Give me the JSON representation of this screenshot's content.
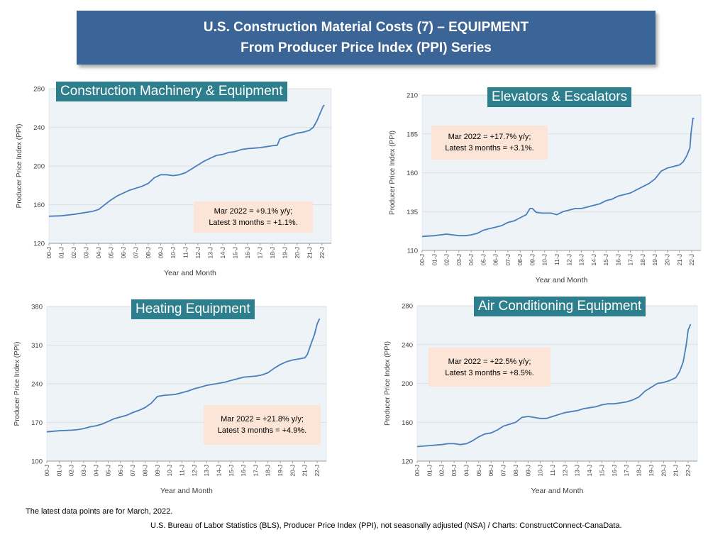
{
  "header": {
    "line1": "U.S. Construction Material Costs (7) – EQUIPMENT",
    "line2": "From Producer Price Index (PPI) Series"
  },
  "footer": {
    "note": "The latest data points are for March, 2022.",
    "source": "U.S. Bureau of Labor Statistics (BLS), Producer Price Index (PPI), not seasonally adjusted (NSA) / Charts: ConstructConnect-CanaData."
  },
  "colors": {
    "line": "#4a7ebb",
    "plot_bg": "#eef3f8",
    "title_bg": "#2e7f8e",
    "note_bg": "#fce4d6",
    "banner": "#3c6597"
  },
  "chart_data": [
    {
      "type": "line",
      "title": "Construction Machinery & Equipment",
      "xlabel": "Year and Month",
      "ylabel": "Producer Price Index (PPI)",
      "ylim": [
        120,
        280
      ],
      "yticks": [
        120,
        160,
        200,
        240,
        280
      ],
      "xticks": [
        "00-J",
        "01-J",
        "02-J",
        "03-J",
        "04-J",
        "05-J",
        "06-J",
        "07-J",
        "08-J",
        "09-J",
        "10-J",
        "11-J",
        "12-J",
        "13-J",
        "14-J",
        "15-J",
        "16-J",
        "17-J",
        "18-J",
        "19-J",
        "20-J",
        "21-J",
        "22-J"
      ],
      "note_line1": "Mar 2022 = +9.1% y/y;",
      "note_line2": "Latest 3 months = +1.1%.",
      "series": [
        {
          "points": [
            [
              2000.0,
              148
            ],
            [
              2001.0,
              148.5
            ],
            [
              2002.0,
              150
            ],
            [
              2002.5,
              151
            ],
            [
              2003.0,
              152
            ],
            [
              2003.5,
              153
            ],
            [
              2004.0,
              155
            ],
            [
              2004.5,
              160
            ],
            [
              2005.0,
              165
            ],
            [
              2005.5,
              169
            ],
            [
              2006.0,
              172
            ],
            [
              2006.5,
              175
            ],
            [
              2007.0,
              177
            ],
            [
              2007.5,
              179
            ],
            [
              2008.0,
              182
            ],
            [
              2008.5,
              188
            ],
            [
              2009.0,
              191
            ],
            [
              2009.5,
              191
            ],
            [
              2010.0,
              190
            ],
            [
              2010.5,
              191
            ],
            [
              2011.0,
              193
            ],
            [
              2011.5,
              197
            ],
            [
              2012.0,
              201
            ],
            [
              2012.5,
              205
            ],
            [
              2013.0,
              208
            ],
            [
              2013.5,
              211
            ],
            [
              2014.0,
              212
            ],
            [
              2014.5,
              214
            ],
            [
              2015.0,
              215
            ],
            [
              2015.5,
              217
            ],
            [
              2016.0,
              218
            ],
            [
              2016.5,
              218.5
            ],
            [
              2017.0,
              219
            ],
            [
              2017.5,
              220
            ],
            [
              2018.0,
              221
            ],
            [
              2018.4,
              221.5
            ],
            [
              2018.6,
              228
            ],
            [
              2019.0,
              230
            ],
            [
              2019.5,
              232
            ],
            [
              2020.0,
              234
            ],
            [
              2020.5,
              235
            ],
            [
              2021.0,
              237
            ],
            [
              2021.3,
              240
            ],
            [
              2021.6,
              247
            ],
            [
              2021.9,
              256
            ],
            [
              2022.1,
              262
            ],
            [
              2022.2,
              263
            ]
          ]
        }
      ]
    },
    {
      "type": "line",
      "title": "Elevators & Escalators",
      "xlabel": "Year and Month",
      "ylabel": "Producer Price Index (PPI)",
      "ylim": [
        110,
        210
      ],
      "yticks": [
        110,
        135,
        160,
        185,
        210
      ],
      "xticks": [
        "00-J",
        "01-J",
        "02-J",
        "03-J",
        "04-J",
        "05-J",
        "06-J",
        "07-J",
        "08-J",
        "09-J",
        "10-J",
        "11-J",
        "12-J",
        "13-J",
        "14-J",
        "15-J",
        "16-J",
        "17-J",
        "18-J",
        "19-J",
        "20-J",
        "21-J",
        "22-J"
      ],
      "note_line1": "Mar 2022 = +17.7% y/y;",
      "note_line2": "Latest 3 months = +3.1%.",
      "series": [
        {
          "points": [
            [
              2000.0,
              119
            ],
            [
              2001.0,
              119.5
            ],
            [
              2002.0,
              120.5
            ],
            [
              2002.5,
              120
            ],
            [
              2003.0,
              119.5
            ],
            [
              2003.5,
              119.5
            ],
            [
              2004.0,
              120
            ],
            [
              2004.5,
              121
            ],
            [
              2005.0,
              123
            ],
            [
              2005.5,
              124
            ],
            [
              2006.0,
              125
            ],
            [
              2006.5,
              126
            ],
            [
              2007.0,
              128
            ],
            [
              2007.5,
              129
            ],
            [
              2008.0,
              131
            ],
            [
              2008.5,
              133
            ],
            [
              2008.8,
              137
            ],
            [
              2009.0,
              137
            ],
            [
              2009.3,
              134.5
            ],
            [
              2009.8,
              134
            ],
            [
              2010.0,
              134
            ],
            [
              2010.5,
              134
            ],
            [
              2011.0,
              133
            ],
            [
              2011.5,
              135
            ],
            [
              2012.0,
              136
            ],
            [
              2012.5,
              137
            ],
            [
              2013.0,
              137
            ],
            [
              2013.5,
              138
            ],
            [
              2014.0,
              139
            ],
            [
              2014.5,
              140
            ],
            [
              2015.0,
              142
            ],
            [
              2015.5,
              143
            ],
            [
              2016.0,
              145
            ],
            [
              2016.5,
              146
            ],
            [
              2017.0,
              147
            ],
            [
              2017.5,
              149
            ],
            [
              2018.0,
              151
            ],
            [
              2018.5,
              153
            ],
            [
              2019.0,
              156
            ],
            [
              2019.5,
              161
            ],
            [
              2020.0,
              163
            ],
            [
              2020.5,
              164
            ],
            [
              2021.0,
              165
            ],
            [
              2021.3,
              167
            ],
            [
              2021.6,
              171
            ],
            [
              2021.85,
              176
            ],
            [
              2021.95,
              186
            ],
            [
              2022.1,
              195
            ],
            [
              2022.2,
              195
            ]
          ]
        }
      ]
    },
    {
      "type": "line",
      "title": "Heating Equipment",
      "xlabel": "Year and Month",
      "ylabel": "Producer Price Index (PPI)",
      "ylim": [
        100,
        380
      ],
      "yticks": [
        100,
        170,
        240,
        310,
        380
      ],
      "xticks": [
        "00-J",
        "01-J",
        "02-J",
        "03-J",
        "04-J",
        "05-J",
        "06-J",
        "07-J",
        "08-J",
        "09-J",
        "10-J",
        "11-J",
        "12-J",
        "13-J",
        "14-J",
        "15-J",
        "16-J",
        "17-J",
        "18-J",
        "19-J",
        "20-J",
        "21-J",
        "22-J"
      ],
      "note_line1": "Mar 2022 = +21.8% y/y;",
      "note_line2": "Latest 3 months = +4.9%.",
      "series": [
        {
          "points": [
            [
              2000.0,
              153
            ],
            [
              2001.0,
              155
            ],
            [
              2002.0,
              156
            ],
            [
              2002.5,
              157
            ],
            [
              2003.0,
              159
            ],
            [
              2003.5,
              162
            ],
            [
              2004.0,
              164
            ],
            [
              2004.5,
              167
            ],
            [
              2005.0,
              172
            ],
            [
              2005.5,
              177
            ],
            [
              2006.0,
              180
            ],
            [
              2006.5,
              183
            ],
            [
              2007.0,
              188
            ],
            [
              2007.5,
              192
            ],
            [
              2008.0,
              197
            ],
            [
              2008.5,
              205
            ],
            [
              2009.0,
              217
            ],
            [
              2009.5,
              219
            ],
            [
              2010.0,
              220
            ],
            [
              2010.5,
              221
            ],
            [
              2011.0,
              224
            ],
            [
              2011.5,
              227
            ],
            [
              2012.0,
              231
            ],
            [
              2012.5,
              234
            ],
            [
              2013.0,
              237
            ],
            [
              2013.5,
              239
            ],
            [
              2014.0,
              241
            ],
            [
              2014.5,
              243
            ],
            [
              2015.0,
              246
            ],
            [
              2015.5,
              249
            ],
            [
              2016.0,
              252
            ],
            [
              2016.5,
              253
            ],
            [
              2017.0,
              254
            ],
            [
              2017.5,
              256
            ],
            [
              2018.0,
              260
            ],
            [
              2018.5,
              268
            ],
            [
              2019.0,
              275
            ],
            [
              2019.5,
              280
            ],
            [
              2020.0,
              283
            ],
            [
              2020.5,
              285
            ],
            [
              2021.0,
              287
            ],
            [
              2021.2,
              293
            ],
            [
              2021.5,
              312
            ],
            [
              2021.8,
              330
            ],
            [
              2022.0,
              348
            ],
            [
              2022.2,
              358
            ]
          ]
        }
      ]
    },
    {
      "type": "line",
      "title": "Air Conditioning Equipment",
      "xlabel": "Year and Month",
      "ylabel": "Producer Price Index (PPI)",
      "ylim": [
        120,
        280
      ],
      "yticks": [
        120,
        160,
        200,
        240,
        280
      ],
      "xticks": [
        "00-J",
        "01-J",
        "02-J",
        "03-J",
        "04-J",
        "05-J",
        "06-J",
        "07-J",
        "08-J",
        "09-J",
        "10-J",
        "11-J",
        "12-J",
        "13-J",
        "14-J",
        "15-J",
        "16-J",
        "17-J",
        "18-J",
        "19-J",
        "20-J",
        "21-J",
        "22-J"
      ],
      "note_line1": "Mar 2022 = +22.5% y/y;",
      "note_line2": "Latest 3 months = +8.5%.",
      "series": [
        {
          "points": [
            [
              2000.0,
              135
            ],
            [
              2001.0,
              136
            ],
            [
              2002.0,
              137
            ],
            [
              2002.5,
              138
            ],
            [
              2003.0,
              138
            ],
            [
              2003.5,
              137
            ],
            [
              2004.0,
              138
            ],
            [
              2004.5,
              141
            ],
            [
              2005.0,
              145
            ],
            [
              2005.5,
              148
            ],
            [
              2006.0,
              149
            ],
            [
              2006.5,
              152
            ],
            [
              2007.0,
              156
            ],
            [
              2007.5,
              158
            ],
            [
              2008.0,
              160
            ],
            [
              2008.5,
              165
            ],
            [
              2009.0,
              166
            ],
            [
              2009.5,
              165
            ],
            [
              2010.0,
              164
            ],
            [
              2010.5,
              164
            ],
            [
              2011.0,
              166
            ],
            [
              2011.5,
              168
            ],
            [
              2012.0,
              170
            ],
            [
              2012.5,
              171
            ],
            [
              2013.0,
              172
            ],
            [
              2013.5,
              174
            ],
            [
              2014.0,
              175
            ],
            [
              2014.5,
              176
            ],
            [
              2015.0,
              178
            ],
            [
              2015.5,
              179
            ],
            [
              2016.0,
              179
            ],
            [
              2016.5,
              180
            ],
            [
              2017.0,
              181
            ],
            [
              2017.5,
              183
            ],
            [
              2018.0,
              186
            ],
            [
              2018.5,
              192
            ],
            [
              2019.0,
              196
            ],
            [
              2019.5,
              200
            ],
            [
              2020.0,
              201
            ],
            [
              2020.5,
              203
            ],
            [
              2021.0,
              206
            ],
            [
              2021.3,
              212
            ],
            [
              2021.6,
              222
            ],
            [
              2021.85,
              240
            ],
            [
              2022.0,
              255
            ],
            [
              2022.2,
              261
            ]
          ]
        }
      ]
    }
  ]
}
